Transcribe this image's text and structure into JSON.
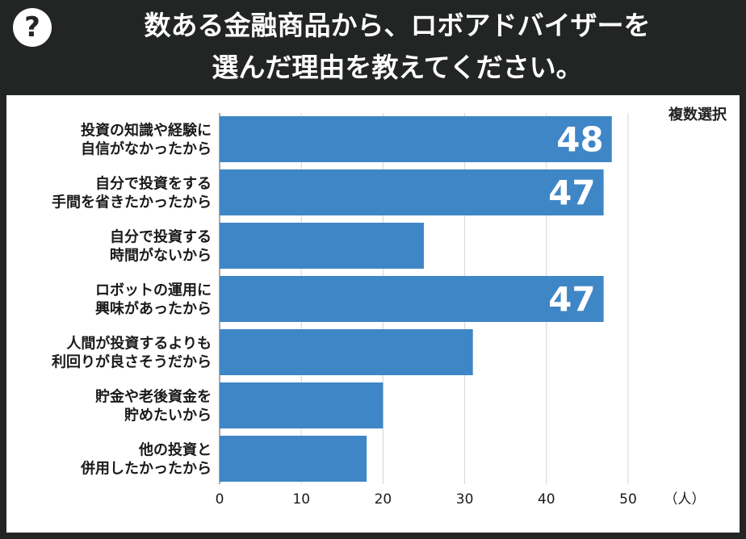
{
  "header": {
    "icon": "question-icon",
    "title_lines": [
      "数ある金融商品から、ロボアドバイザーを",
      "選んだ理由を教えてください。"
    ]
  },
  "note": "複数選択",
  "chart_data": {
    "type": "bar",
    "orientation": "horizontal",
    "title": "数ある金融商品から、ロボアドバイザーを選んだ理由を教えてください。",
    "unit_label": "（人）",
    "xlim": [
      0,
      50
    ],
    "xticks": [
      0,
      10,
      20,
      30,
      40,
      50
    ],
    "grid": true,
    "bar_color": "#3f86c6",
    "categories": [
      [
        "投資の知識や経験に",
        "自信がなかったから"
      ],
      [
        "自分で投資をする",
        "手間を省きたかったから"
      ],
      [
        "自分で投資する",
        "時間がないから"
      ],
      [
        "ロボットの運用に",
        "興味があったから"
      ],
      [
        "人間が投資するよりも",
        "利回りが良さそうだから"
      ],
      [
        "貯金や老後資金を",
        "貯めたいから"
      ],
      [
        "他の投資と",
        "併用したかったから"
      ]
    ],
    "values": [
      48,
      47,
      25,
      47,
      31,
      20,
      18
    ],
    "data_labels": [
      "48",
      "47",
      "",
      "47",
      "",
      "",
      ""
    ]
  }
}
